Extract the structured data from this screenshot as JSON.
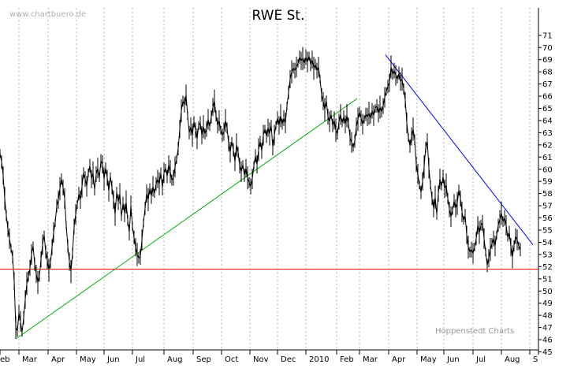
{
  "chart_data": {
    "type": "line",
    "title": "RWE St.",
    "watermark": "www.chartbuero.de",
    "source_label": "Hoppenstedt Charts",
    "ylim": [
      44.5,
      71.5
    ],
    "y_ticks": [
      45,
      46,
      47,
      48,
      49,
      50,
      51,
      52,
      53,
      54,
      55,
      56,
      57,
      58,
      59,
      60,
      61,
      62,
      63,
      64,
      65,
      66,
      67,
      68,
      69,
      70,
      71
    ],
    "x_months": [
      "eb",
      "Mar",
      "Apr",
      "May",
      "Jun",
      "Jul",
      "Aug",
      "Sep",
      "Oct",
      "Nov",
      "Dec",
      "2010",
      "Feb",
      "Mar",
      "Apr",
      "May",
      "Jun",
      "Jul",
      "Aug",
      "S"
    ],
    "grid": "vertical-dashed",
    "colors": {
      "price": "#000000",
      "support_line": "#ff0000",
      "uptrend_line": "#00b000",
      "downtrend_line": "#0000ff",
      "grid": "#b4b4b4"
    },
    "price_series": {
      "name": "",
      "points": [
        [
          0,
          61.3
        ],
        [
          2,
          60.6
        ],
        [
          4,
          59.5
        ],
        [
          6,
          57.6
        ],
        [
          8,
          56.2
        ],
        [
          10,
          55.1
        ],
        [
          12,
          54.3
        ],
        [
          14,
          53.5
        ],
        [
          16,
          52.8
        ],
        [
          18,
          50.8
        ],
        [
          20,
          47.0
        ],
        [
          22,
          46.7
        ],
        [
          24,
          48.2
        ],
        [
          26,
          47.5
        ],
        [
          28,
          46.6
        ],
        [
          30,
          47.8
        ],
        [
          32,
          49.3
        ],
        [
          34,
          50.6
        ],
        [
          36,
          51.2
        ],
        [
          38,
          51.9
        ],
        [
          40,
          53.0
        ],
        [
          42,
          53.7
        ],
        [
          44,
          52.2
        ],
        [
          46,
          51.4
        ],
        [
          48,
          50.7
        ],
        [
          50,
          51.2
        ],
        [
          52,
          52.6
        ],
        [
          54,
          53.8
        ],
        [
          56,
          54.6
        ],
        [
          58,
          53.2
        ],
        [
          60,
          52.5
        ],
        [
          62,
          51.7
        ],
        [
          64,
          52.3
        ],
        [
          66,
          53.6
        ],
        [
          68,
          54.8
        ],
        [
          70,
          55.6
        ],
        [
          72,
          57.0
        ],
        [
          74,
          57.5
        ],
        [
          76,
          58.4
        ],
        [
          78,
          59.2
        ],
        [
          80,
          58.5
        ],
        [
          82,
          57.6
        ],
        [
          84,
          55.4
        ],
        [
          86,
          53.7
        ],
        [
          88,
          52.4
        ],
        [
          90,
          51.6
        ],
        [
          92,
          53.1
        ],
        [
          94,
          55.3
        ],
        [
          96,
          56.3
        ],
        [
          98,
          57.1
        ],
        [
          100,
          58.0
        ],
        [
          102,
          57.5
        ],
        [
          104,
          58.6
        ],
        [
          106,
          59.7
        ],
        [
          108,
          59.2
        ],
        [
          110,
          58.6
        ],
        [
          112,
          59.7
        ],
        [
          114,
          60.3
        ],
        [
          116,
          59.2
        ],
        [
          118,
          59.7
        ],
        [
          120,
          58.3
        ],
        [
          122,
          59.6
        ],
        [
          124,
          60.1
        ],
        [
          126,
          59.3
        ],
        [
          128,
          60.7
        ],
        [
          130,
          60.4
        ],
        [
          132,
          59.2
        ],
        [
          134,
          60.1
        ],
        [
          136,
          59.3
        ],
        [
          138,
          58.2
        ],
        [
          140,
          59.4
        ],
        [
          142,
          58.5
        ],
        [
          144,
          57.5
        ],
        [
          146,
          56.3
        ],
        [
          148,
          58.1
        ],
        [
          150,
          57.3
        ],
        [
          152,
          58.0
        ],
        [
          154,
          56.1
        ],
        [
          156,
          57.2
        ],
        [
          158,
          56.4
        ],
        [
          160,
          57.3
        ],
        [
          162,
          55.8
        ],
        [
          164,
          54.8
        ],
        [
          166,
          57.0
        ],
        [
          168,
          55.3
        ],
        [
          170,
          54.4
        ],
        [
          172,
          53.6
        ],
        [
          174,
          53.0
        ],
        [
          176,
          52.7
        ],
        [
          178,
          52.8
        ],
        [
          180,
          54.2
        ],
        [
          182,
          55.6
        ],
        [
          184,
          56.8
        ],
        [
          186,
          58.0
        ],
        [
          188,
          57.5
        ],
        [
          190,
          58.4
        ],
        [
          192,
          57.8
        ],
        [
          194,
          58.6
        ],
        [
          196,
          58.0
        ],
        [
          198,
          58.8
        ],
        [
          200,
          59.2
        ],
        [
          202,
          58.8
        ],
        [
          204,
          59.7
        ],
        [
          206,
          58.5
        ],
        [
          208,
          59.7
        ],
        [
          210,
          60.1
        ],
        [
          212,
          59.4
        ],
        [
          214,
          60.4
        ],
        [
          216,
          59.8
        ],
        [
          218,
          59.1
        ],
        [
          220,
          59.3
        ],
        [
          222,
          60.2
        ],
        [
          224,
          60.8
        ],
        [
          226,
          61.7
        ],
        [
          228,
          63.3
        ],
        [
          230,
          64.8
        ],
        [
          232,
          65.6
        ],
        [
          234,
          65.3
        ],
        [
          236,
          66.1
        ],
        [
          238,
          64.4
        ],
        [
          240,
          63.0
        ],
        [
          242,
          63.5
        ],
        [
          244,
          62.8
        ],
        [
          246,
          63.9
        ],
        [
          248,
          63.2
        ],
        [
          250,
          62.5
        ],
        [
          252,
          63.6
        ],
        [
          254,
          63.8
        ],
        [
          256,
          62.8
        ],
        [
          258,
          63.5
        ],
        [
          260,
          62.9
        ],
        [
          262,
          63.3
        ],
        [
          264,
          64.1
        ],
        [
          266,
          63.5
        ],
        [
          268,
          64.3
        ],
        [
          270,
          65.1
        ],
        [
          272,
          65.6
        ],
        [
          274,
          64.4
        ],
        [
          276,
          63.6
        ],
        [
          278,
          64.0
        ],
        [
          280,
          63.2
        ],
        [
          282,
          62.8
        ],
        [
          284,
          63.1
        ],
        [
          286,
          64.0
        ],
        [
          288,
          63.4
        ],
        [
          290,
          62.1
        ],
        [
          292,
          61.4
        ],
        [
          294,
          62.3
        ],
        [
          296,
          61.6
        ],
        [
          298,
          60.6
        ],
        [
          300,
          62.0
        ],
        [
          302,
          61.4
        ],
        [
          304,
          60.3
        ],
        [
          306,
          59.8
        ],
        [
          308,
          60.4
        ],
        [
          310,
          59.5
        ],
        [
          312,
          60.1
        ],
        [
          314,
          59.3
        ],
        [
          316,
          58.9
        ],
        [
          318,
          58.6
        ],
        [
          320,
          59.2
        ],
        [
          322,
          60.3
        ],
        [
          324,
          61.1
        ],
        [
          326,
          60.4
        ],
        [
          328,
          61.6
        ],
        [
          330,
          62.3
        ],
        [
          332,
          61.5
        ],
        [
          334,
          62.8
        ],
        [
          336,
          63.3
        ],
        [
          338,
          62.7
        ],
        [
          340,
          63.4
        ],
        [
          342,
          62.9
        ],
        [
          344,
          63.6
        ],
        [
          346,
          61.8
        ],
        [
          348,
          62.8
        ],
        [
          350,
          63.6
        ],
        [
          352,
          64.2
        ],
        [
          354,
          63.6
        ],
        [
          356,
          64.4
        ],
        [
          358,
          63.7
        ],
        [
          360,
          64.2
        ],
        [
          362,
          63.8
        ],
        [
          364,
          65.2
        ],
        [
          366,
          66.3
        ],
        [
          368,
          67.4
        ],
        [
          370,
          68.0
        ],
        [
          372,
          68.3
        ],
        [
          374,
          68.1
        ],
        [
          376,
          68.4
        ],
        [
          378,
          68.7
        ],
        [
          380,
          69.2
        ],
        [
          382,
          68.9
        ],
        [
          384,
          69.1
        ],
        [
          386,
          68.7
        ],
        [
          388,
          69.2
        ],
        [
          390,
          68.8
        ],
        [
          392,
          69.3
        ],
        [
          394,
          68.6
        ],
        [
          396,
          69.0
        ],
        [
          398,
          68.3
        ],
        [
          400,
          68.6
        ],
        [
          402,
          68.1
        ],
        [
          404,
          68.4
        ],
        [
          406,
          67.4
        ],
        [
          408,
          66.1
        ],
        [
          410,
          65.6
        ],
        [
          412,
          64.9
        ],
        [
          414,
          65.6
        ],
        [
          416,
          64.3
        ],
        [
          418,
          63.9
        ],
        [
          420,
          64.5
        ],
        [
          422,
          63.6
        ],
        [
          424,
          64.0
        ],
        [
          426,
          63.2
        ],
        [
          428,
          62.9
        ],
        [
          430,
          63.9
        ],
        [
          432,
          64.5
        ],
        [
          434,
          63.8
        ],
        [
          436,
          64.3
        ],
        [
          438,
          63.7
        ],
        [
          440,
          64.4
        ],
        [
          442,
          63.8
        ],
        [
          444,
          62.6
        ],
        [
          446,
          62.2
        ],
        [
          448,
          61.8
        ],
        [
          450,
          62.3
        ],
        [
          452,
          63.5
        ],
        [
          454,
          64.1
        ],
        [
          456,
          64.7
        ],
        [
          458,
          64.2
        ],
        [
          460,
          63.7
        ],
        [
          462,
          64.1
        ],
        [
          464,
          64.5
        ],
        [
          466,
          64.3
        ],
        [
          468,
          64.6
        ],
        [
          470,
          64.2
        ],
        [
          472,
          64.8
        ],
        [
          474,
          64.4
        ],
        [
          476,
          65.0
        ],
        [
          478,
          65.2
        ],
        [
          480,
          64.6
        ],
        [
          482,
          65.1
        ],
        [
          484,
          64.7
        ],
        [
          486,
          65.2
        ],
        [
          488,
          65.9
        ],
        [
          490,
          66.4
        ],
        [
          492,
          66.8
        ],
        [
          494,
          67.1
        ],
        [
          496,
          68.4
        ],
        [
          498,
          67.8
        ],
        [
          500,
          68.1
        ],
        [
          502,
          67.7
        ],
        [
          504,
          67.4
        ],
        [
          506,
          67.9
        ],
        [
          508,
          67.2
        ],
        [
          510,
          67.4
        ],
        [
          512,
          66.6
        ],
        [
          514,
          65.7
        ],
        [
          516,
          63.8
        ],
        [
          518,
          62.6
        ],
        [
          520,
          61.9
        ],
        [
          522,
          62.7
        ],
        [
          524,
          63.3
        ],
        [
          526,
          62.4
        ],
        [
          528,
          60.4
        ],
        [
          530,
          59.6
        ],
        [
          532,
          58.7
        ],
        [
          534,
          58.1
        ],
        [
          536,
          59.0
        ],
        [
          538,
          60.2
        ],
        [
          540,
          61.8
        ],
        [
          542,
          62.3
        ],
        [
          544,
          60.1
        ],
        [
          546,
          58.7
        ],
        [
          548,
          57.6
        ],
        [
          550,
          56.8
        ],
        [
          552,
          57.7
        ],
        [
          554,
          56.3
        ],
        [
          556,
          58.0
        ],
        [
          558,
          59.2
        ],
        [
          560,
          58.6
        ],
        [
          562,
          59.4
        ],
        [
          564,
          58.4
        ],
        [
          566,
          58.7
        ],
        [
          568,
          57.6
        ],
        [
          570,
          56.7
        ],
        [
          572,
          56.1
        ],
        [
          574,
          56.6
        ],
        [
          576,
          57.4
        ],
        [
          578,
          56.8
        ],
        [
          580,
          57.2
        ],
        [
          582,
          58.3
        ],
        [
          584,
          57.6
        ],
        [
          586,
          56.5
        ],
        [
          588,
          55.8
        ],
        [
          590,
          56.2
        ],
        [
          592,
          54.6
        ],
        [
          594,
          53.6
        ],
        [
          596,
          53.2
        ],
        [
          598,
          53.4
        ],
        [
          600,
          53.1
        ],
        [
          602,
          53.6
        ],
        [
          604,
          54.3
        ],
        [
          606,
          55.4
        ],
        [
          608,
          54.8
        ],
        [
          610,
          55.4
        ],
        [
          612,
          55.6
        ],
        [
          614,
          54.3
        ],
        [
          616,
          53.2
        ],
        [
          618,
          52.1
        ],
        [
          620,
          52.7
        ],
        [
          622,
          53.4
        ],
        [
          624,
          53.9
        ],
        [
          626,
          54.3
        ],
        [
          628,
          53.7
        ],
        [
          630,
          54.6
        ],
        [
          632,
          55.4
        ],
        [
          634,
          55.9
        ],
        [
          636,
          56.4
        ],
        [
          638,
          55.7
        ],
        [
          640,
          56.0
        ],
        [
          642,
          55.4
        ],
        [
          644,
          54.4
        ],
        [
          646,
          54.8
        ],
        [
          648,
          53.6
        ],
        [
          650,
          52.8
        ],
        [
          652,
          53.7
        ],
        [
          654,
          54.5
        ],
        [
          656,
          54.2
        ],
        [
          658,
          53.7
        ],
        [
          660,
          53.4
        ]
      ]
    },
    "support_line": {
      "y": 51.8
    },
    "uptrend_line": {
      "from": [
        21,
        46.1
      ],
      "to": [
        453,
        65.8
      ]
    },
    "downtrend_line": {
      "from": [
        489,
        69.4
      ],
      "to": [
        676,
        53.8
      ]
    }
  }
}
